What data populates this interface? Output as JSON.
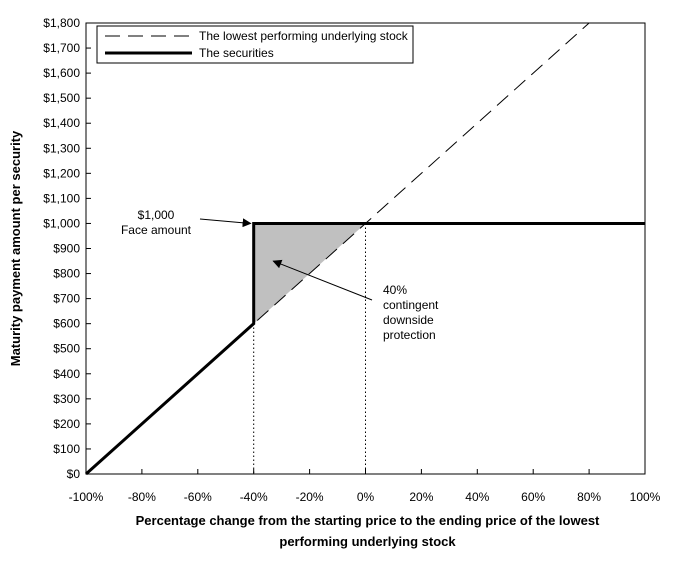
{
  "chart_data": {
    "type": "line",
    "ylabel": "Maturity payment amount per security",
    "xlabel_lines": [
      "Percentage change from the starting price to the ending price of the lowest",
      "performing underlying stock"
    ],
    "xlim": [
      -100,
      100
    ],
    "ylim": [
      0,
      1800
    ],
    "x_ticks": [
      -100,
      -80,
      -60,
      -40,
      -20,
      0,
      20,
      40,
      60,
      80,
      100
    ],
    "x_tick_labels": [
      "-100%",
      "-80%",
      "-60%",
      "-40%",
      "-20%",
      "0%",
      "20%",
      "40%",
      "60%",
      "80%",
      "100%"
    ],
    "y_ticks": [
      0,
      100,
      200,
      300,
      400,
      500,
      600,
      700,
      800,
      900,
      1000,
      1100,
      1200,
      1300,
      1400,
      1500,
      1600,
      1700,
      1800
    ],
    "y_tick_labels": [
      "$0",
      "$100",
      "$200",
      "$300",
      "$400",
      "$500",
      "$600",
      "$700",
      "$800",
      "$900",
      "$1,000",
      "$1,100",
      "$1,200",
      "$1,300",
      "$1,400",
      "$1,500",
      "$1,600",
      "$1,700",
      "$1,800"
    ],
    "grid": false,
    "legend_position": "top-left",
    "series": [
      {
        "name": "The lowest performing underlying stock",
        "style": "dashed",
        "color": "#000000",
        "x": [
          -100,
          80
        ],
        "y": [
          0,
          1800
        ]
      },
      {
        "name": "The securities",
        "style": "solid-thick",
        "color": "#000000",
        "x": [
          -100,
          -40,
          -40,
          100
        ],
        "y": [
          0,
          600,
          1000,
          1000
        ]
      }
    ],
    "shaded_region": {
      "color": "#c0c0c0",
      "x": [
        -40,
        -40,
        0
      ],
      "y": [
        600,
        1000,
        1000
      ]
    },
    "reference_lines": [
      {
        "x": -40,
        "y_top": 1000,
        "style": "dotted"
      },
      {
        "x": 0,
        "y_top": 1000,
        "style": "dotted"
      }
    ],
    "annotations": [
      {
        "lines": [
          "$1,000",
          "Face amount"
        ],
        "arrow_to": [
          -40,
          1000
        ]
      },
      {
        "lines": [
          "40%",
          "contingent",
          "downside",
          "protection"
        ],
        "arrow_to": [
          -33,
          850
        ]
      }
    ]
  }
}
